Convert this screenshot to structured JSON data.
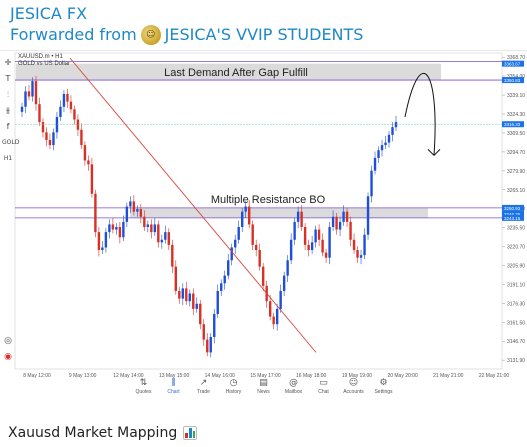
{
  "message": {
    "sender": "JESICA FX",
    "forwarded_prefix": "Forwarded from",
    "forwarded_channel": "JESICA'S VVIP STUDENTS",
    "caption": "Xauusd Market Mapping"
  },
  "chart_header": {
    "symbol": "XAUUSD.m • H1",
    "subtitle": "GOLD vs US Dollar"
  },
  "annotations": {
    "demand_zone": "Last Demand After Gap Fulfill",
    "resistance_zone": "Multiple Resistance BO"
  },
  "toolbar": [
    "crosshair-icon",
    "text-icon",
    "indicators-icon",
    "objects-icon",
    "function-icon",
    "gold-symbol",
    "timeframe-h1"
  ],
  "toolbar_labels": {
    "gold": "GOLD",
    "tf": "H1",
    "fx": "f"
  },
  "bottom_nav": {
    "items": [
      {
        "label": "Quotes",
        "icon": "⇅",
        "active": false
      },
      {
        "label": "Chart",
        "icon": "⫼",
        "active": true
      },
      {
        "label": "Trade",
        "icon": "↗",
        "active": false
      },
      {
        "label": "History",
        "icon": "◷",
        "active": false
      },
      {
        "label": "News",
        "icon": "▤",
        "active": false
      },
      {
        "label": "Mailbox",
        "icon": "@",
        "active": false
      },
      {
        "label": "Chat",
        "icon": "▭",
        "active": false
      },
      {
        "label": "Accounts",
        "icon": "☺",
        "active": false
      },
      {
        "label": "Settings",
        "icon": "⚙",
        "active": false
      }
    ]
  },
  "colors": {
    "bull": "#1f4fd6",
    "bear": "#d93025",
    "trendline": "#d9453d",
    "zone_fill": "#d7d7d7",
    "zone_line": "#7b4fd6",
    "price_tag": "#1a73e8"
  },
  "chart_data": {
    "type": "candlestick",
    "x_ticks": [
      "8 May 12:00",
      "9 May 13:00",
      "12 May 14:00",
      "13 May 15:00",
      "14 May 16:00",
      "15 May 17:00",
      "16 May 18:00",
      "19 May 19:00",
      "20 May 20:00",
      "21 May 21:00",
      "22 May 21:00"
    ],
    "y_ticks": [
      "3368.70",
      "3354.00",
      "3339.10",
      "3324.30",
      "3309.50",
      "3294.70",
      "3279.90",
      "3265.10",
      "3250.30",
      "3235.50",
      "3220.70",
      "3205.90",
      "3191.10",
      "3176.30",
      "3161.50",
      "3146.70",
      "3131.90"
    ],
    "ylim": [
      3125,
      3372
    ],
    "price_tags": [
      "3363.67",
      "3350.83",
      "3316.33",
      "3250.93",
      "3246.35",
      "3243.15"
    ],
    "closes": [
      3330,
      3342,
      3338,
      3350,
      3332,
      3318,
      3310,
      3304,
      3300,
      3310,
      3322,
      3330,
      3340,
      3334,
      3328,
      3320,
      3312,
      3300,
      3288,
      3285,
      3262,
      3232,
      3218,
      3220,
      3232,
      3238,
      3234,
      3236,
      3228,
      3240,
      3252,
      3256,
      3248,
      3250,
      3244,
      3236,
      3238,
      3232,
      3238,
      3224,
      3226,
      3232,
      3222,
      3205,
      3186,
      3180,
      3188,
      3178,
      3184,
      3172,
      3176,
      3160,
      3148,
      3138,
      3150,
      3168,
      3186,
      3192,
      3198,
      3210,
      3220,
      3226,
      3236,
      3248,
      3252,
      3238,
      3222,
      3218,
      3205,
      3190,
      3178,
      3166,
      3160,
      3172,
      3186,
      3198,
      3210,
      3226,
      3240,
      3248,
      3236,
      3222,
      3218,
      3224,
      3234,
      3226,
      3216,
      3212,
      3236,
      3244,
      3234,
      3240,
      3248,
      3240,
      3226,
      3218,
      3212,
      3214,
      3230,
      3260,
      3280,
      3290,
      3296,
      3300,
      3302,
      3308,
      3314,
      3318
    ]
  }
}
